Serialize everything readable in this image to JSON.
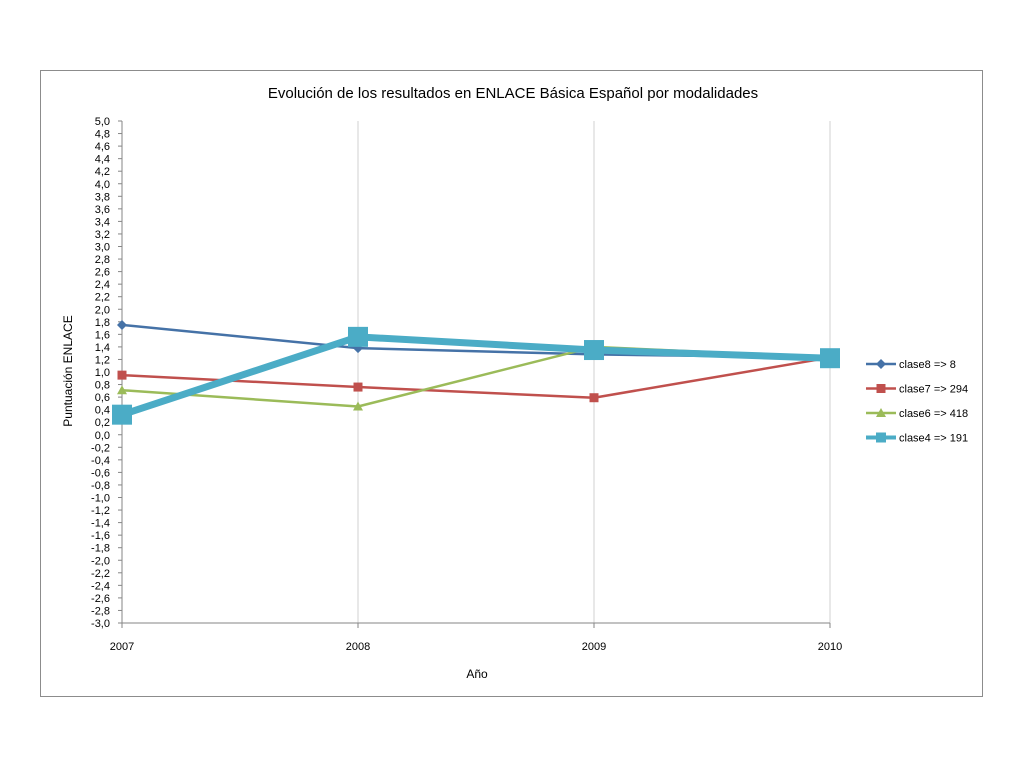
{
  "chart_data": {
    "type": "line",
    "title": "Evolución de los resultados en ENLACE Básica Español por modalidades",
    "xlabel": "Año",
    "ylabel": "Puntuación ENLACE",
    "categories": [
      "2007",
      "2008",
      "2009",
      "2010"
    ],
    "ylim": [
      -3.0,
      5.0
    ],
    "ystep": 0.2,
    "grid": "vertical",
    "legend_position": "right",
    "series": [
      {
        "name": "clase8 => 8",
        "values": [
          1.75,
          1.38,
          1.28,
          1.23
        ],
        "color": "#4572A7",
        "marker": "diamond"
      },
      {
        "name": "clase7 => 294",
        "values": [
          0.95,
          0.76,
          0.59,
          1.23
        ],
        "color": "#C0504D",
        "marker": "square"
      },
      {
        "name": "clase6 => 418",
        "values": [
          0.71,
          0.45,
          1.4,
          1.23
        ],
        "color": "#9BBB59",
        "marker": "triangle"
      },
      {
        "name": "clase4 => 191",
        "values": [
          0.32,
          1.56,
          1.35,
          1.22
        ],
        "color": "#4BACC6",
        "marker": "bigsquare"
      }
    ]
  }
}
